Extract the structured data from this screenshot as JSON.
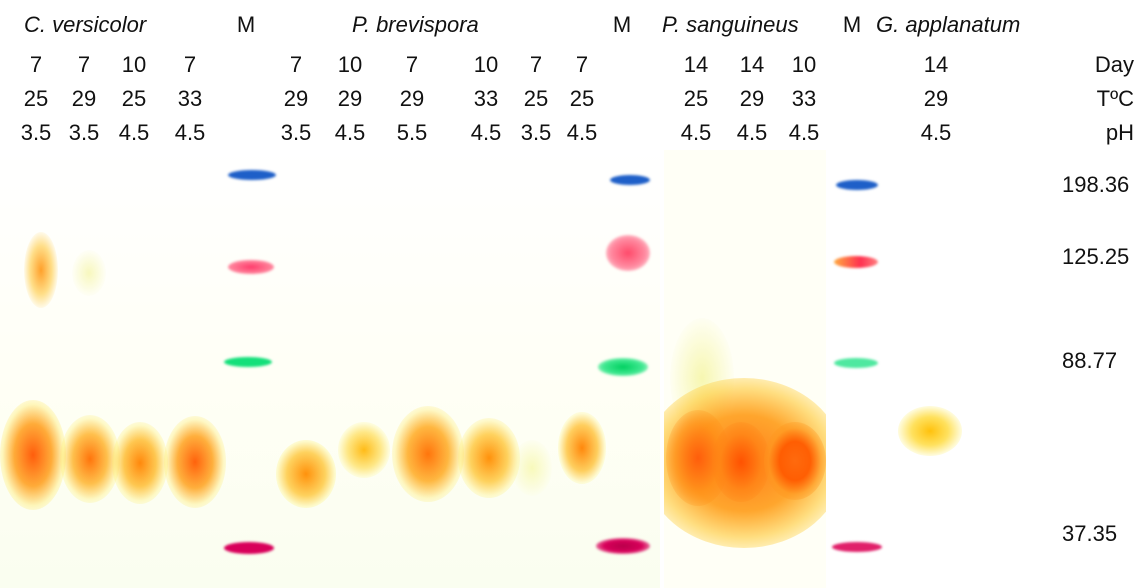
{
  "species": {
    "versicolor": "C. versicolor",
    "brevispora": "P. brevispora",
    "sanguineus": "P. sanguineus",
    "applanatum": "G. applanatum"
  },
  "marker_label": "M",
  "row_labels": {
    "day": "Day",
    "temp": "TºC",
    "ph": "pH"
  },
  "lanes": [
    {
      "day": "7",
      "temp": "25",
      "ph": "3.5"
    },
    {
      "day": "7",
      "temp": "29",
      "ph": "3.5"
    },
    {
      "day": "10",
      "temp": "25",
      "ph": "4.5"
    },
    {
      "day": "7",
      "temp": "33",
      "ph": "4.5"
    },
    {
      "day": "7",
      "temp": "29",
      "ph": "3.5"
    },
    {
      "day": "10",
      "temp": "29",
      "ph": "4.5"
    },
    {
      "day": "7",
      "temp": "29",
      "ph": "5.5"
    },
    {
      "day": "10",
      "temp": "33",
      "ph": "4.5"
    },
    {
      "day": "7",
      "temp": "25",
      "ph": "3.5"
    },
    {
      "day": "7",
      "temp": "25",
      "ph": "4.5"
    },
    {
      "day": "14",
      "temp": "25",
      "ph": "4.5"
    },
    {
      "day": "14",
      "temp": "29",
      "ph": "4.5"
    },
    {
      "day": "10",
      "temp": "33",
      "ph": "4.5"
    },
    {
      "day": "14",
      "temp": "29",
      "ph": "4.5"
    }
  ],
  "mw_labels": [
    "198.36",
    "125.25",
    "88.77",
    "37.35"
  ],
  "colors": {
    "marker_blue": "#1e5fc8",
    "marker_pink": "#ff4f78",
    "marker_green": "#14e07a",
    "marker_magenta": "#d8005a",
    "band_orange": "#ff7a00",
    "band_yellow": "#ffe34a"
  }
}
